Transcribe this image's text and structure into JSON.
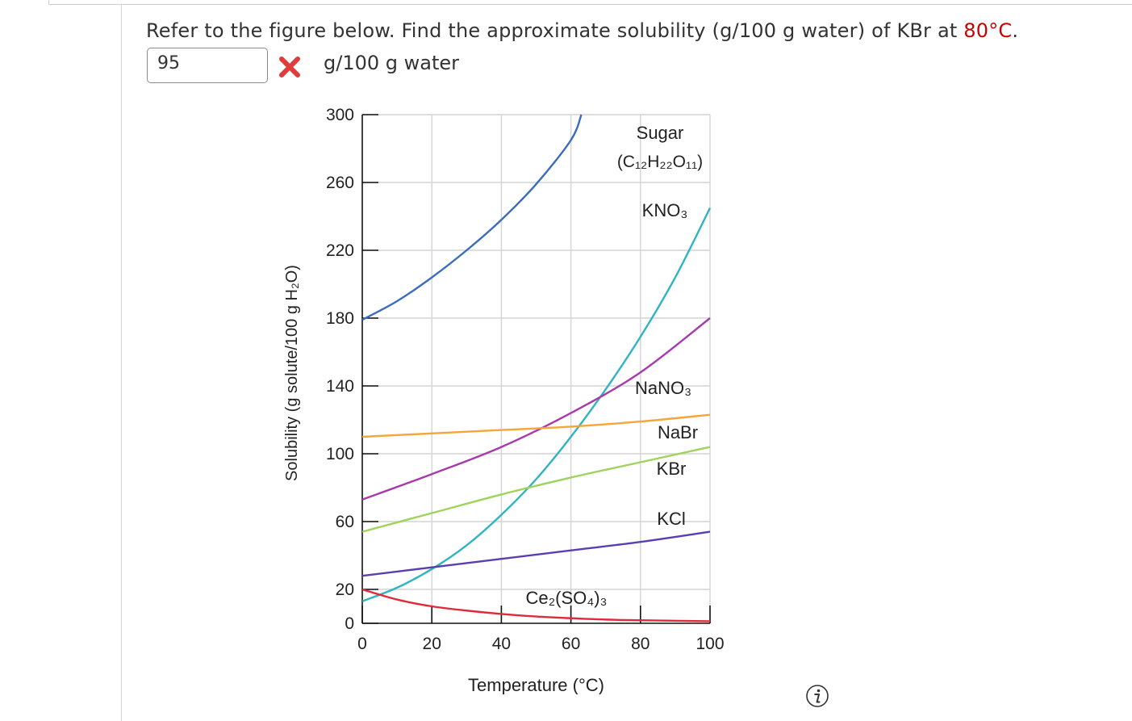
{
  "question": {
    "prefix": "Refer to the figure below. Find the approximate solubility (g/100 g water) of KBr at ",
    "highlight": "80°C",
    "suffix": "."
  },
  "answer": {
    "value": "95",
    "unit": "g/100 g water",
    "status_icon": "x-icon",
    "status_color": "#e03c3c"
  },
  "info_icon": "info-icon",
  "chart_data": {
    "type": "line",
    "title": "",
    "xlabel": "Temperature (°C)",
    "ylabel": "Solubility (g solute/100 g H₂O)",
    "xlim": [
      0,
      100
    ],
    "ylim": [
      0,
      300
    ],
    "xticks": [
      0,
      20,
      40,
      60,
      80,
      100
    ],
    "yticks": [
      0,
      20,
      60,
      100,
      140,
      180,
      220,
      260,
      300
    ],
    "grid": true,
    "series": [
      {
        "name": "Sugar",
        "formula": "(C₁₂H₂₂O₁₁)",
        "color": "#3b6cc0",
        "x": [
          0,
          10,
          20,
          30,
          40,
          50,
          60,
          63
        ],
        "y": [
          179,
          190,
          204,
          220,
          238,
          259,
          285,
          300
        ]
      },
      {
        "name": "KNO₃",
        "color": "#2fb4c1",
        "x": [
          0,
          10,
          20,
          30,
          40,
          50,
          60,
          70,
          80,
          90,
          100
        ],
        "y": [
          13,
          21,
          32,
          46,
          64,
          85,
          110,
          138,
          169,
          204,
          245
        ]
      },
      {
        "name": "NaNO₃",
        "color": "#a93aae",
        "x": [
          0,
          20,
          40,
          60,
          80,
          100
        ],
        "y": [
          73,
          88,
          104,
          124,
          148,
          180
        ]
      },
      {
        "name": "NaBr",
        "color": "#f5a53a",
        "x": [
          0,
          20,
          40,
          60,
          80,
          100
        ],
        "y": [
          110,
          112,
          114,
          116,
          119,
          123
        ]
      },
      {
        "name": "KBr",
        "color": "#9fd35b",
        "x": [
          0,
          20,
          40,
          60,
          80,
          100
        ],
        "y": [
          54,
          65,
          76,
          86,
          95,
          104
        ]
      },
      {
        "name": "KCl",
        "color": "#5a3fb0",
        "x": [
          0,
          20,
          40,
          60,
          80,
          100
        ],
        "y": [
          28,
          33,
          38,
          43,
          48,
          54
        ]
      },
      {
        "name": "Ce₂(SO₄)₃",
        "color": "#e02a3a",
        "x": [
          0,
          10,
          20,
          30,
          40,
          50,
          60,
          70,
          80,
          100
        ],
        "y": [
          20,
          14,
          10,
          7.5,
          5.5,
          4,
          3,
          2.2,
          1.8,
          1.2
        ]
      }
    ]
  }
}
